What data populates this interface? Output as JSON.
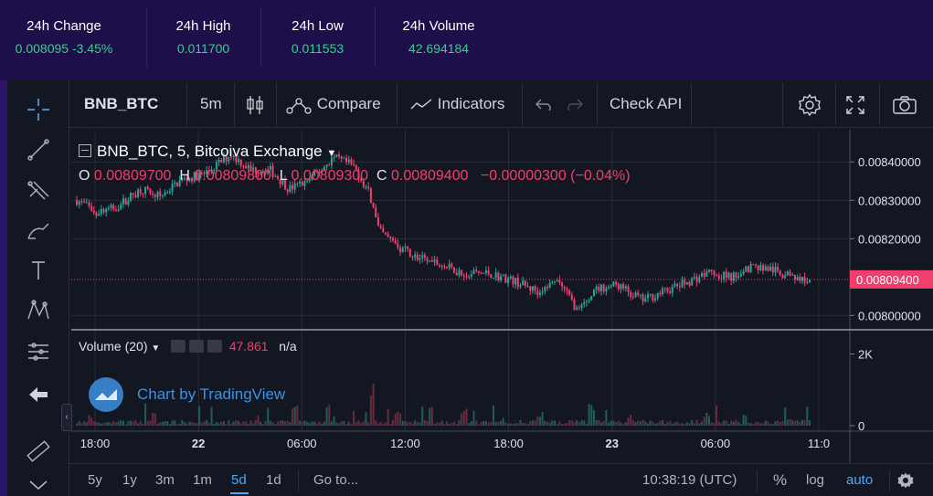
{
  "stats": [
    {
      "label": "24h Change",
      "value": "0.008095 -3.45%"
    },
    {
      "label": "24h High",
      "value": "0.011700"
    },
    {
      "label": "24h Low",
      "value": "0.011553"
    },
    {
      "label": "24h Volume",
      "value": "42.694184"
    }
  ],
  "toolbar": {
    "symbol": "BNB_BTC",
    "interval": "5m",
    "compare_label": "Compare",
    "indicators_label": "Indicators",
    "check_api_label": "Check API"
  },
  "legend": {
    "title": "BNB_BTC, 5, Bitcoiva Exchange",
    "o_label": "O",
    "o_value": "0.00809700",
    "h_label": "H",
    "h_value": "0.00809800",
    "l_label": "L",
    "l_value": "0.00809300",
    "c_label": "C",
    "c_value": "0.00809400",
    "change": "−0.00000300 (−0.04%)"
  },
  "volume_legend": {
    "name": "Volume (20)",
    "value": "47.861",
    "na": "n/a"
  },
  "watermark": "Chart by TradingView",
  "price_axis": {
    "ticks": [
      "0.00840000",
      "0.00830000",
      "0.00820000",
      "0.00800000"
    ],
    "last_price": "0.00809400"
  },
  "volume_axis": {
    "ticks": [
      "2K",
      "0"
    ]
  },
  "time_axis": [
    "18:00",
    "22",
    "06:00",
    "12:00",
    "18:00",
    "23",
    "06:00",
    "11:0"
  ],
  "bottombar": {
    "ranges": [
      "5y",
      "1y",
      "3m",
      "1m",
      "5d",
      "1d"
    ],
    "active_range": "5d",
    "goto_label": "Go to...",
    "clock": "10:38:19 (UTC)",
    "percent_label": "%",
    "log_label": "log",
    "auto_label": "auto"
  },
  "colors": {
    "up": "#26a69a",
    "up_green": "#32d38a",
    "down": "#f23e6c",
    "accent": "#4fa8f2",
    "background": "#131722",
    "header_bg": "#1e0e4a"
  },
  "chart_data": {
    "type": "line",
    "title": "BNB_BTC, 5, Bitcoiva Exchange",
    "x_labels": [
      "18:00",
      "22",
      "06:00",
      "12:00",
      "18:00",
      "23",
      "06:00",
      "11:0"
    ],
    "y_range": [
      0.00797,
      0.00846
    ],
    "series": [
      {
        "name": "BNB_BTC",
        "values": [
          [
            0,
            0.0083
          ],
          [
            0.3,
            0.00827
          ],
          [
            0.6,
            0.00828
          ],
          [
            1.0,
            0.00833
          ],
          [
            1.3,
            0.00831
          ],
          [
            1.6,
            0.00835
          ],
          [
            2.0,
            0.00837
          ],
          [
            2.4,
            0.00842
          ],
          [
            2.7,
            0.00838
          ],
          [
            3.0,
            0.00838
          ],
          [
            3.3,
            0.00833
          ],
          [
            3.6,
            0.00835
          ],
          [
            4.0,
            0.00841
          ],
          [
            4.3,
            0.00839
          ],
          [
            4.55,
            0.00832
          ],
          [
            4.7,
            0.00822
          ],
          [
            5.0,
            0.00818
          ],
          [
            5.3,
            0.00815
          ],
          [
            5.7,
            0.00813
          ],
          [
            6.0,
            0.00811
          ],
          [
            6.4,
            0.00811
          ],
          [
            6.8,
            0.00809
          ],
          [
            7.2,
            0.00806
          ],
          [
            7.5,
            0.00809
          ],
          [
            7.8,
            0.00801
          ],
          [
            8.1,
            0.00807
          ],
          [
            8.4,
            0.00808
          ],
          [
            8.8,
            0.00804
          ],
          [
            9.1,
            0.00806
          ],
          [
            9.4,
            0.00808
          ],
          [
            9.8,
            0.00811
          ],
          [
            10.2,
            0.0081
          ],
          [
            10.5,
            0.00813
          ],
          [
            10.8,
            0.00812
          ],
          [
            11.1,
            0.0081
          ],
          [
            11.4,
            0.00809
          ]
        ]
      }
    ],
    "volume": [
      {
        "name": "Volume",
        "peaks": [
          [
            0.2,
            300
          ],
          [
            1.2,
            400
          ],
          [
            3.4,
            600
          ],
          [
            3.9,
            700
          ],
          [
            4.6,
            1300
          ],
          [
            5.0,
            500
          ],
          [
            5.5,
            600
          ],
          [
            6.0,
            500
          ],
          [
            7.2,
            400
          ],
          [
            8.0,
            700
          ],
          [
            8.6,
            300
          ],
          [
            9.8,
            400
          ],
          [
            10.4,
            350
          ],
          [
            11.1,
            250
          ]
        ]
      }
    ],
    "volume_range": [
      0,
      2600
    ]
  }
}
